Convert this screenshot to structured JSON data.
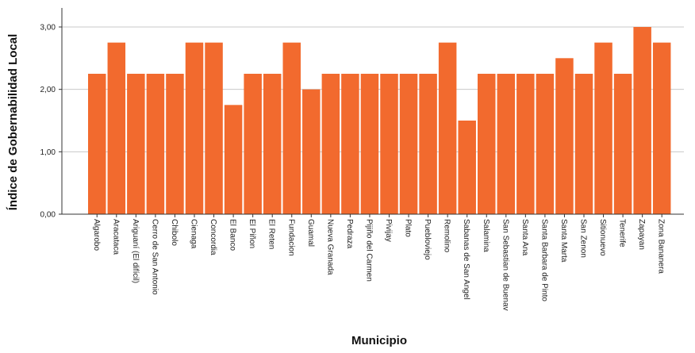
{
  "chart_data": {
    "type": "bar",
    "xlabel": "Municipio",
    "ylabel": "Índice de Gobernabilidad Local",
    "ylim": [
      0,
      3
    ],
    "yticks": [
      "0,00",
      "1,00",
      "2,00",
      "3,00"
    ],
    "grid": true,
    "bar_color": "#F26A2E",
    "grid_color": "#C8C8C8",
    "categories": [
      "Algarobo",
      "Aracataca",
      "Ariguaní (El difícil)",
      "Cerro de San Antonio",
      "Chibolo",
      "Cienaga",
      "Concordia",
      "El Banco",
      "El Piñon",
      "El Reten",
      "Fundacion",
      "Guamal",
      "Nueva Granada",
      "Pedraza",
      "Pijiño del Carmen",
      "Pivijay",
      "Plato",
      "Puebloviejo",
      "Remolino",
      "Sabanas de San Angel",
      "Salamina",
      "San Sebastian de Buenav",
      "Santa Ana",
      "Santa Barbara de Pinto",
      "Santa Marta",
      "San Zenon",
      "Sitionuevo",
      "Tenerife",
      "Zapayan",
      "Zona Bananera"
    ],
    "values": [
      2.25,
      2.75,
      2.25,
      2.25,
      2.25,
      2.75,
      2.75,
      1.75,
      2.25,
      2.25,
      2.75,
      2.0,
      2.25,
      2.25,
      2.25,
      2.25,
      2.25,
      2.25,
      2.75,
      1.5,
      2.25,
      2.25,
      2.25,
      2.25,
      2.5,
      2.25,
      2.75,
      2.25,
      3.0,
      2.75
    ]
  }
}
